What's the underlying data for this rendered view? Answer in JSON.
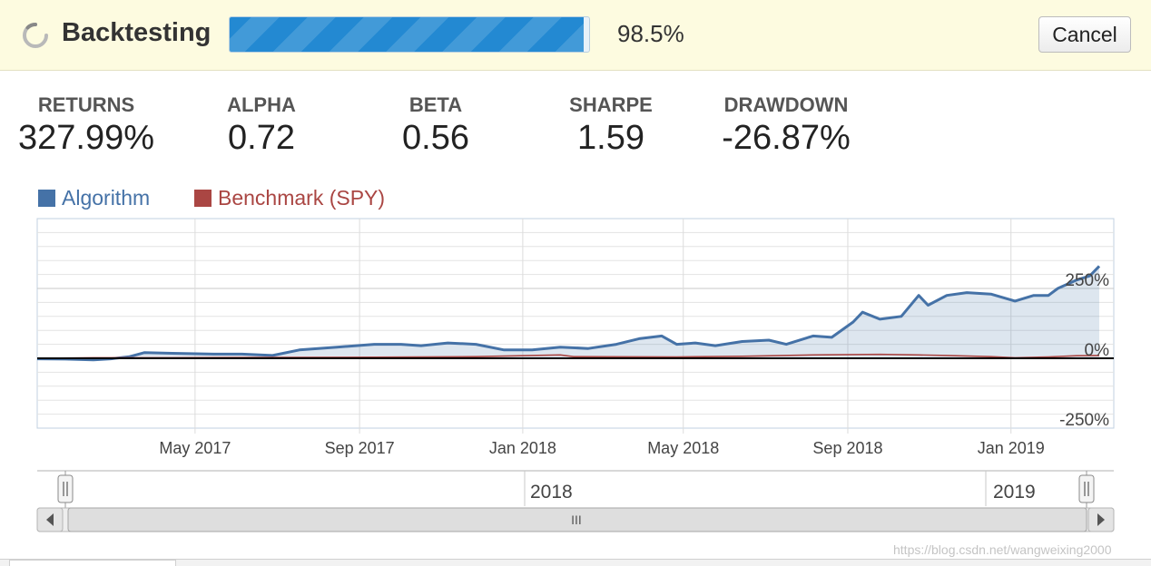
{
  "header": {
    "title": "Backtesting",
    "progress": 0.985,
    "progress_text": "98.5%",
    "cancel_label": "Cancel",
    "accent": "#2389d2"
  },
  "stats": [
    {
      "label": "RETURNS",
      "value": "327.99%"
    },
    {
      "label": "ALPHA",
      "value": "0.72"
    },
    {
      "label": "BETA",
      "value": "0.56"
    },
    {
      "label": "SHARPE",
      "value": "1.59"
    },
    {
      "label": "DRAWDOWN",
      "value": "-26.87%"
    }
  ],
  "chart_data": {
    "type": "line",
    "x_tick_labels": [
      "May 2017",
      "Sep 2017",
      "Jan 2018",
      "May 2018",
      "Sep 2018",
      "Jan 2019"
    ],
    "y_tick_labels": [
      "250%",
      "0%",
      "-250%"
    ],
    "y_ticks": [
      250,
      0,
      -250
    ],
    "ylim": [
      -250,
      500
    ],
    "x_range": [
      "2017-01-03",
      "2019-03-08"
    ],
    "grid": true,
    "legend_position": "top-left",
    "series": [
      {
        "name": "Algorithm",
        "color": "#4572a7",
        "fill": true,
        "points": [
          [
            "2017-01-03",
            -2
          ],
          [
            "2017-01-24",
            -3
          ],
          [
            "2017-02-14",
            -6
          ],
          [
            "2017-02-27",
            -2
          ],
          [
            "2017-03-13",
            6
          ],
          [
            "2017-03-24",
            20
          ],
          [
            "2017-04-14",
            18
          ],
          [
            "2017-05-15",
            15
          ],
          [
            "2017-06-05",
            15
          ],
          [
            "2017-06-28",
            10
          ],
          [
            "2017-07-18",
            30
          ],
          [
            "2017-08-15",
            40
          ],
          [
            "2017-09-12",
            50
          ],
          [
            "2017-10-02",
            50
          ],
          [
            "2017-10-17",
            45
          ],
          [
            "2017-11-06",
            55
          ],
          [
            "2017-11-27",
            50
          ],
          [
            "2017-12-18",
            30
          ],
          [
            "2018-01-08",
            30
          ],
          [
            "2018-01-29",
            40
          ],
          [
            "2018-02-19",
            35
          ],
          [
            "2018-03-12",
            50
          ],
          [
            "2018-03-29",
            70
          ],
          [
            "2018-04-15",
            80
          ],
          [
            "2018-04-26",
            50
          ],
          [
            "2018-05-10",
            55
          ],
          [
            "2018-05-25",
            45
          ],
          [
            "2018-06-14",
            60
          ],
          [
            "2018-07-04",
            65
          ],
          [
            "2018-07-17",
            50
          ],
          [
            "2018-08-06",
            80
          ],
          [
            "2018-08-20",
            75
          ],
          [
            "2018-09-05",
            130
          ],
          [
            "2018-09-12",
            165
          ],
          [
            "2018-09-25",
            140
          ],
          [
            "2018-10-11",
            150
          ],
          [
            "2018-10-24",
            225
          ],
          [
            "2018-10-31",
            190
          ],
          [
            "2018-11-14",
            225
          ],
          [
            "2018-11-29",
            235
          ],
          [
            "2018-12-17",
            230
          ],
          [
            "2019-01-04",
            205
          ],
          [
            "2019-01-18",
            225
          ],
          [
            "2019-01-29",
            225
          ],
          [
            "2019-02-05",
            250
          ],
          [
            "2019-02-19",
            280
          ],
          [
            "2019-03-01",
            295
          ],
          [
            "2019-03-08",
            330
          ]
        ]
      },
      {
        "name": "Benchmark (SPY)",
        "color": "#aa4643",
        "fill": false,
        "points": [
          [
            "2017-01-03",
            0
          ],
          [
            "2017-02-14",
            2
          ],
          [
            "2017-04-14",
            2
          ],
          [
            "2017-06-28",
            3
          ],
          [
            "2017-09-12",
            4
          ],
          [
            "2017-11-27",
            6
          ],
          [
            "2018-01-29",
            12
          ],
          [
            "2018-02-08",
            6
          ],
          [
            "2018-04-26",
            5
          ],
          [
            "2018-06-14",
            7
          ],
          [
            "2018-08-06",
            12
          ],
          [
            "2018-09-25",
            14
          ],
          [
            "2018-10-24",
            12
          ],
          [
            "2018-11-14",
            10
          ],
          [
            "2018-12-17",
            6
          ],
          [
            "2019-01-04",
            2
          ],
          [
            "2019-01-29",
            5
          ],
          [
            "2019-02-19",
            9
          ],
          [
            "2019-03-08",
            10
          ]
        ]
      }
    ]
  },
  "navigator": {
    "labels": [
      "2018",
      "2019"
    ],
    "scroll_grip": "III",
    "left_arrow": "◂",
    "right_arrow": "▸",
    "handle_grip": "||"
  },
  "watermark": "https://blog.csdn.net/wangweixing2000"
}
